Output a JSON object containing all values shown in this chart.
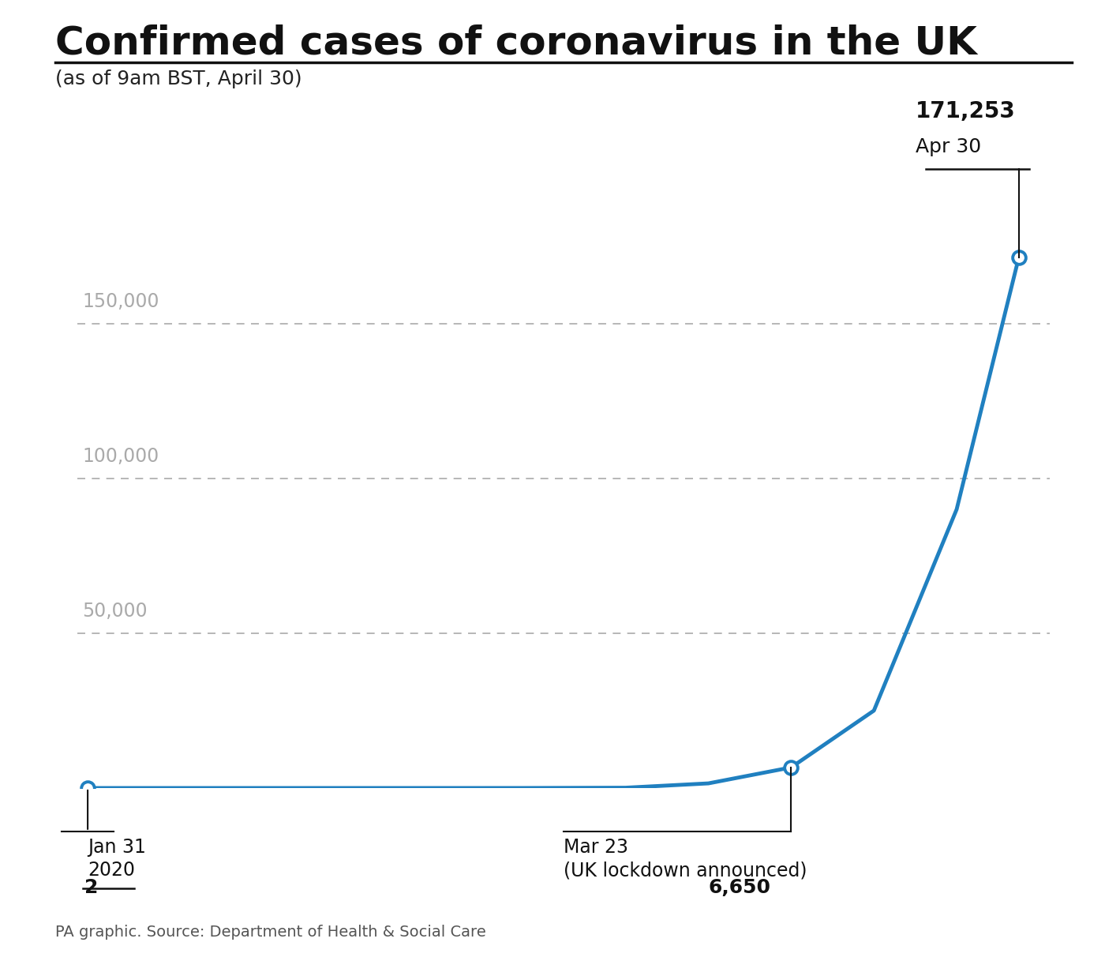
{
  "title": "Confirmed cases of coronavirus in the UK",
  "subtitle": "(as of 9am BST, April 30)",
  "source": "PA graphic. Source: Department of Health & Social Care",
  "line_color": "#2080c0",
  "background_color": "#ffffff",
  "grid_color": "#aaaaaa",
  "annotation_color": "#111111",
  "x_dates": [
    0,
    14,
    28,
    42,
    52,
    60,
    68,
    76,
    84,
    90
  ],
  "y_values": [
    2,
    3,
    5,
    9,
    100,
    1500,
    6650,
    25000,
    90000,
    171253
  ],
  "yticks": [
    50000,
    100000,
    150000
  ],
  "ytick_labels": [
    "50,000",
    "100,000",
    "150,000"
  ],
  "ylim": [
    0,
    180000
  ],
  "xlim": [
    -1,
    93
  ],
  "title_fontsize": 36,
  "subtitle_fontsize": 18,
  "source_fontsize": 14,
  "tick_fontsize": 17,
  "annotation_fontsize": 17
}
